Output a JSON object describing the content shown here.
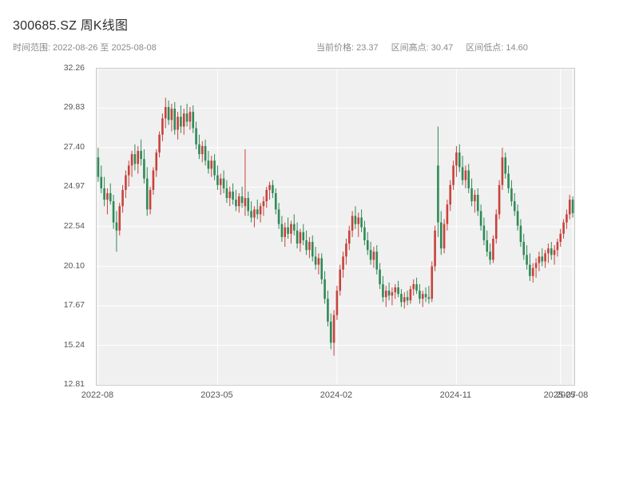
{
  "header": {
    "title": "300685.SZ 周K线图",
    "subtitle_left": "时间范围: 2022-08-26 至 2025-08-08",
    "price_label": "当前价格: 23.37",
    "high_label": "区间高点: 30.47",
    "low_label": "区间低点: 14.60"
  },
  "chart_data": {
    "type": "candlestick",
    "title": "300685.SZ 周K线图",
    "symbol": "300685.SZ",
    "interval": "weekly",
    "date_range_start": "2022-08-26",
    "date_range_end": "2025-08-08",
    "current_price": 23.37,
    "range_high": 30.47,
    "range_low": 14.6,
    "ylim": [
      12.81,
      32.26
    ],
    "y_ticks": [
      12.81,
      15.24,
      17.67,
      20.1,
      22.54,
      24.97,
      27.4,
      29.83,
      32.26
    ],
    "y_tick_labels": [
      "12.81",
      "15.24",
      "17.67",
      "20.10",
      "22.54",
      "24.97",
      "27.40",
      "29.83",
      "32.26"
    ],
    "x_ticks": [
      {
        "index": 0,
        "label": "2022-08"
      },
      {
        "index": 39,
        "label": "2023-05"
      },
      {
        "index": 78,
        "label": "2024-02"
      },
      {
        "index": 117,
        "label": "2024-11"
      },
      {
        "index": 151,
        "label": "2025-07"
      },
      {
        "index": 155,
        "label": "2025-08"
      }
    ],
    "colors": {
      "up": "#c8423c",
      "down": "#2f8a57",
      "plot_bg": "#f0f0f0",
      "grid": "#ffffff",
      "frame": "#c9c9c9"
    },
    "grid": true,
    "legend": false,
    "candles": [
      [
        26.8,
        27.4,
        25.3,
        25.6
      ],
      [
        25.6,
        26.3,
        24.6,
        24.9
      ],
      [
        24.9,
        25.6,
        23.8,
        24.2
      ],
      [
        24.2,
        24.9,
        23.3,
        24.6
      ],
      [
        24.6,
        25.2,
        23.9,
        24.1
      ],
      [
        24.1,
        24.5,
        22.4,
        22.8
      ],
      [
        22.8,
        23.5,
        21.0,
        22.3
      ],
      [
        22.3,
        24.0,
        22.0,
        23.8
      ],
      [
        23.8,
        25.1,
        23.4,
        24.8
      ],
      [
        24.8,
        26.0,
        24.3,
        25.7
      ],
      [
        25.7,
        26.6,
        25.0,
        26.3
      ],
      [
        26.3,
        27.2,
        25.6,
        27.0
      ],
      [
        27.0,
        27.6,
        26.0,
        26.4
      ],
      [
        26.4,
        27.5,
        25.8,
        27.2
      ],
      [
        27.2,
        27.9,
        26.3,
        26.7
      ],
      [
        26.7,
        27.3,
        25.2,
        25.5
      ],
      [
        25.5,
        26.2,
        23.2,
        23.6
      ],
      [
        23.6,
        25.0,
        23.3,
        24.8
      ],
      [
        24.8,
        26.2,
        24.5,
        26.0
      ],
      [
        26.0,
        27.3,
        25.6,
        27.1
      ],
      [
        27.1,
        28.4,
        26.8,
        28.2
      ],
      [
        28.2,
        29.5,
        27.8,
        29.2
      ],
      [
        29.2,
        30.47,
        28.6,
        29.9
      ],
      [
        29.9,
        30.3,
        28.8,
        29.1
      ],
      [
        29.1,
        30.1,
        28.4,
        29.8
      ],
      [
        29.8,
        30.2,
        28.2,
        28.5
      ],
      [
        28.5,
        29.6,
        27.9,
        29.3
      ],
      [
        29.3,
        30.0,
        28.3,
        28.7
      ],
      [
        28.7,
        29.8,
        28.2,
        29.5
      ],
      [
        29.5,
        30.1,
        28.7,
        29.0
      ],
      [
        29.0,
        29.9,
        28.5,
        29.6
      ],
      [
        29.6,
        30.0,
        28.3,
        28.6
      ],
      [
        28.6,
        29.0,
        27.3,
        27.6
      ],
      [
        27.6,
        28.2,
        26.7,
        27.0
      ],
      [
        27.0,
        27.8,
        26.5,
        27.5
      ],
      [
        27.5,
        27.9,
        26.3,
        26.6
      ],
      [
        26.6,
        27.2,
        25.8,
        26.1
      ],
      [
        26.1,
        26.9,
        25.6,
        26.6
      ],
      [
        26.6,
        27.0,
        25.4,
        25.7
      ],
      [
        25.7,
        26.3,
        24.8,
        25.1
      ],
      [
        25.1,
        25.8,
        24.5,
        25.5
      ],
      [
        25.5,
        26.0,
        24.6,
        24.9
      ],
      [
        24.9,
        25.4,
        24.0,
        24.3
      ],
      [
        24.3,
        25.0,
        23.8,
        24.7
      ],
      [
        24.7,
        25.2,
        23.9,
        24.2
      ],
      [
        24.2,
        24.8,
        23.5,
        23.8
      ],
      [
        23.8,
        24.6,
        23.4,
        24.4
      ],
      [
        24.4,
        25.0,
        23.7,
        24.0
      ],
      [
        23.8,
        27.3,
        23.2,
        24.3
      ],
      [
        24.3,
        24.7,
        23.2,
        23.5
      ],
      [
        23.5,
        24.1,
        22.8,
        23.1
      ],
      [
        23.1,
        23.8,
        22.5,
        23.6
      ],
      [
        23.6,
        24.2,
        23.0,
        23.3
      ],
      [
        23.3,
        24.0,
        22.8,
        23.8
      ],
      [
        23.8,
        24.4,
        23.2,
        24.1
      ],
      [
        24.1,
        25.0,
        23.7,
        24.8
      ],
      [
        24.8,
        25.3,
        24.2,
        25.1
      ],
      [
        25.1,
        25.4,
        24.3,
        24.6
      ],
      [
        24.6,
        24.9,
        23.3,
        23.6
      ],
      [
        23.6,
        24.0,
        22.4,
        22.7
      ],
      [
        22.7,
        23.2,
        21.6,
        21.9
      ],
      [
        21.9,
        22.8,
        21.3,
        22.5
      ],
      [
        22.5,
        23.1,
        21.8,
        22.1
      ],
      [
        22.1,
        22.9,
        21.5,
        22.7
      ],
      [
        22.7,
        23.3,
        22.0,
        22.3
      ],
      [
        22.3,
        22.8,
        21.2,
        21.5
      ],
      [
        21.5,
        22.4,
        21.0,
        22.2
      ],
      [
        22.2,
        22.7,
        21.4,
        21.7
      ],
      [
        21.7,
        22.3,
        20.8,
        21.1
      ],
      [
        21.1,
        21.9,
        20.6,
        21.6
      ],
      [
        21.6,
        22.0,
        20.4,
        20.7
      ],
      [
        20.7,
        21.3,
        19.9,
        20.2
      ],
      [
        20.2,
        20.9,
        19.6,
        20.6
      ],
      [
        20.6,
        20.9,
        19.0,
        19.3
      ],
      [
        19.3,
        19.8,
        17.8,
        18.1
      ],
      [
        18.1,
        18.6,
        16.4,
        16.7
      ],
      [
        16.7,
        17.2,
        15.0,
        15.4
      ],
      [
        15.4,
        17.4,
        14.6,
        17.1
      ],
      [
        17.1,
        18.9,
        16.8,
        18.6
      ],
      [
        18.6,
        20.2,
        18.3,
        19.9
      ],
      [
        19.9,
        21.0,
        19.4,
        20.7
      ],
      [
        20.7,
        21.8,
        20.2,
        21.5
      ],
      [
        21.5,
        22.6,
        21.1,
        22.3
      ],
      [
        22.3,
        23.5,
        21.9,
        23.2
      ],
      [
        23.2,
        23.8,
        22.4,
        22.7
      ],
      [
        22.7,
        23.4,
        21.9,
        23.1
      ],
      [
        23.1,
        23.6,
        22.2,
        22.5
      ],
      [
        22.5,
        22.9,
        21.4,
        21.7
      ],
      [
        21.7,
        22.2,
        20.8,
        21.1
      ],
      [
        21.1,
        21.6,
        20.2,
        20.5
      ],
      [
        20.5,
        21.3,
        20.0,
        21.0
      ],
      [
        21.0,
        21.4,
        19.6,
        19.9
      ],
      [
        19.9,
        20.3,
        18.7,
        19.0
      ],
      [
        19.0,
        19.5,
        17.9,
        18.2
      ],
      [
        18.2,
        18.9,
        17.6,
        18.6
      ],
      [
        18.6,
        19.1,
        18.0,
        18.3
      ],
      [
        18.3,
        18.8,
        17.7,
        18.5
      ],
      [
        18.5,
        19.0,
        18.1,
        18.8
      ],
      [
        18.8,
        19.2,
        18.2,
        18.4
      ],
      [
        18.4,
        18.7,
        17.6,
        17.9
      ],
      [
        17.9,
        18.5,
        17.5,
        18.2
      ],
      [
        18.2,
        18.6,
        17.7,
        18.0
      ],
      [
        18.0,
        18.9,
        17.8,
        18.7
      ],
      [
        18.7,
        19.3,
        18.3,
        19.0
      ],
      [
        19.0,
        19.4,
        18.4,
        18.6
      ],
      [
        18.6,
        19.0,
        17.8,
        18.1
      ],
      [
        18.1,
        18.6,
        17.6,
        18.4
      ],
      [
        18.4,
        18.8,
        17.9,
        18.2
      ],
      [
        18.2,
        18.9,
        17.8,
        18.1
      ],
      [
        18.1,
        20.4,
        17.9,
        20.1
      ],
      [
        20.1,
        22.6,
        19.8,
        22.3
      ],
      [
        26.3,
        28.7,
        21.9,
        22.8
      ],
      [
        22.8,
        23.5,
        20.8,
        21.2
      ],
      [
        21.2,
        23.0,
        20.9,
        22.7
      ],
      [
        22.7,
        24.2,
        22.3,
        23.9
      ],
      [
        23.9,
        25.4,
        23.5,
        25.1
      ],
      [
        25.1,
        26.6,
        24.8,
        26.3
      ],
      [
        26.3,
        27.5,
        25.6,
        27.1
      ],
      [
        27.1,
        27.6,
        25.9,
        26.2
      ],
      [
        26.2,
        26.9,
        25.1,
        25.4
      ],
      [
        25.4,
        26.3,
        24.9,
        26.0
      ],
      [
        26.0,
        26.4,
        24.6,
        24.9
      ],
      [
        24.9,
        25.5,
        23.8,
        24.1
      ],
      [
        24.1,
        24.8,
        23.4,
        24.5
      ],
      [
        24.5,
        24.9,
        23.2,
        23.5
      ],
      [
        23.5,
        23.9,
        22.3,
        22.6
      ],
      [
        22.6,
        23.1,
        21.4,
        21.7
      ],
      [
        21.7,
        22.3,
        20.7,
        21.0
      ],
      [
        21.0,
        21.5,
        20.2,
        20.5
      ],
      [
        20.5,
        22.0,
        20.3,
        21.8
      ],
      [
        21.8,
        23.6,
        21.5,
        23.3
      ],
      [
        23.3,
        25.4,
        23.0,
        25.1
      ],
      [
        25.1,
        27.4,
        24.8,
        26.8
      ],
      [
        26.8,
        27.1,
        25.5,
        25.8
      ],
      [
        25.8,
        26.3,
        24.6,
        24.9
      ],
      [
        24.9,
        25.4,
        23.8,
        24.1
      ],
      [
        24.1,
        24.6,
        23.2,
        23.5
      ],
      [
        23.5,
        23.9,
        22.3,
        22.6
      ],
      [
        22.6,
        23.0,
        21.3,
        21.6
      ],
      [
        21.6,
        22.1,
        20.5,
        20.8
      ],
      [
        20.8,
        21.4,
        19.9,
        20.2
      ],
      [
        20.2,
        20.9,
        19.2,
        19.5
      ],
      [
        19.5,
        20.3,
        19.1,
        20.0
      ],
      [
        20.0,
        20.6,
        19.4,
        20.3
      ],
      [
        20.3,
        21.0,
        19.8,
        20.7
      ],
      [
        20.7,
        21.2,
        20.1,
        20.4
      ],
      [
        20.4,
        21.1,
        20.0,
        20.9
      ],
      [
        20.9,
        21.5,
        20.3,
        21.2
      ],
      [
        21.2,
        21.6,
        20.5,
        20.8
      ],
      [
        20.8,
        21.4,
        20.2,
        21.1
      ],
      [
        21.1,
        21.8,
        20.7,
        21.6
      ],
      [
        21.6,
        22.4,
        21.3,
        22.1
      ],
      [
        22.1,
        23.0,
        21.8,
        22.8
      ],
      [
        22.8,
        23.6,
        22.4,
        23.3
      ],
      [
        23.3,
        24.5,
        23.0,
        24.2
      ],
      [
        24.2,
        24.4,
        23.1,
        23.37
      ]
    ]
  }
}
